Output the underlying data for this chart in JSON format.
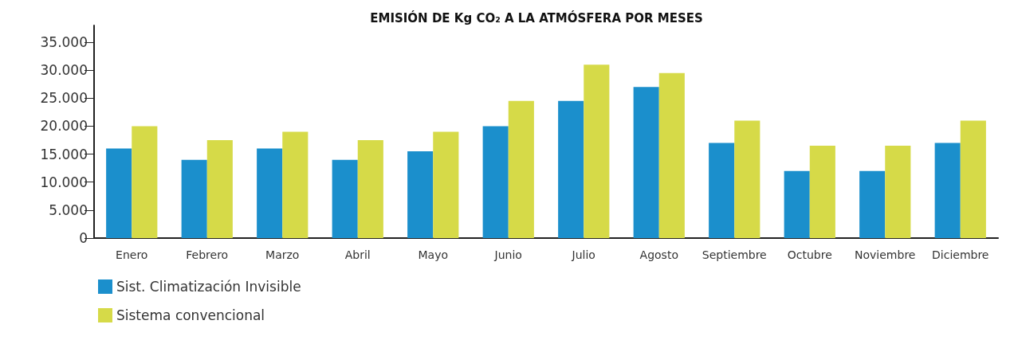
{
  "chart_data": {
    "type": "bar",
    "title": "EMISIÓN DE Kg CO₂ A LA ATMÓSFERA POR MESES",
    "categories": [
      "Enero",
      "Febrero",
      "Marzo",
      "Abril",
      "Mayo",
      "Junio",
      "Julio",
      "Agosto",
      "Septiembre",
      "Octubre",
      "Noviembre",
      "Diciembre"
    ],
    "series": [
      {
        "name": "Sist. Climatización Invisible",
        "color": "#1b8fcc",
        "values": [
          16000,
          14000,
          16000,
          14000,
          15500,
          20000,
          24500,
          27000,
          17000,
          12000,
          12000,
          17000
        ]
      },
      {
        "name": "Sistema convencional",
        "color": "#d6da48",
        "values": [
          20000,
          17500,
          19000,
          17500,
          19000,
          24500,
          31000,
          29500,
          21000,
          16500,
          16500,
          21000
        ]
      }
    ],
    "ylim": [
      0,
      38000
    ],
    "yticks": [
      {
        "value": 0,
        "label": "0"
      },
      {
        "value": 5000,
        "label": "5.000"
      },
      {
        "value": 10000,
        "label": "10.000"
      },
      {
        "value": 15000,
        "label": "15.000"
      },
      {
        "value": 20000,
        "label": "20.000"
      },
      {
        "value": 25000,
        "label": "25.000"
      },
      {
        "value": 30000,
        "label": "30.000"
      },
      {
        "value": 35000,
        "label": "35.000"
      }
    ],
    "grid": false,
    "legend": "bottom left"
  }
}
